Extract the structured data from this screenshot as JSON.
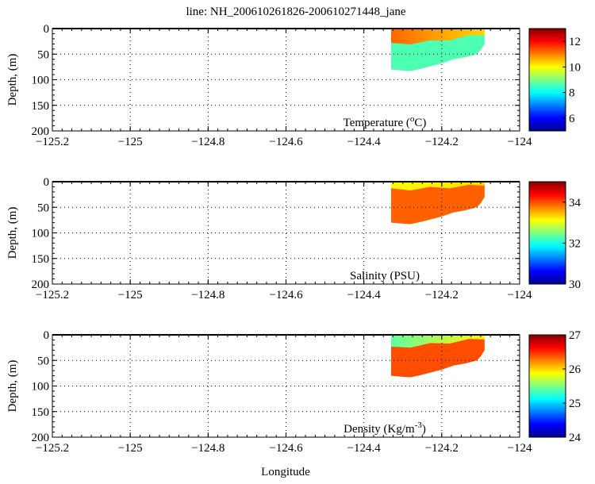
{
  "chart_data": {
    "type": "heatmap",
    "title": "line: NH_200610261826-200610271448_jane",
    "xlabel": "Longitude",
    "xlim": [
      -125.2,
      -124
    ],
    "x_ticks": [
      "-125.2",
      "-125",
      "-124.8",
      "-124.6",
      "-124.4",
      "-124.2",
      "-124"
    ],
    "x_tick_values": [
      -125.2,
      -125,
      -124.8,
      -124.6,
      -124.4,
      -124.2,
      -124
    ],
    "ylim": [
      0,
      200
    ],
    "y_ticks": [
      "0",
      "50",
      "100",
      "150",
      "200"
    ],
    "y_tick_values": [
      0,
      50,
      100,
      150,
      200
    ],
    "grid": true,
    "section_outline": {
      "lon": [
        -124.33,
        -124.33,
        -124.3,
        -124.28,
        -124.25,
        -124.2,
        -124.17,
        -124.14,
        -124.11,
        -124.1,
        -124.09,
        -124.09
      ],
      "bottom_depth": [
        0,
        80,
        82,
        83,
        78,
        68,
        60,
        56,
        50,
        42,
        30,
        0
      ]
    },
    "panels": [
      {
        "name": "temperature",
        "ylabel": "Depth, (m)",
        "label": "Temperature (",
        "label_sup": "o",
        "label_end": "C)",
        "clim": [
          5,
          13
        ],
        "cbar_ticks": [
          "6",
          "8",
          "10",
          "12"
        ],
        "cbar_tick_values": [
          6,
          8,
          10,
          12
        ],
        "layers": [
          {
            "depth_to": [
              30,
              28,
              25,
              20,
              15,
              10
            ],
            "value_west": 11.2,
            "value_east": 10.3
          },
          {
            "value": 8.6
          }
        ]
      },
      {
        "name": "salinity",
        "ylabel": "Depth, (m)",
        "label": "Salinity (PSU)",
        "label_sup": "",
        "label_end": "",
        "clim": [
          30,
          35
        ],
        "cbar_ticks": [
          "30",
          "32",
          "34"
        ],
        "cbar_tick_values": [
          30,
          32,
          34
        ],
        "layers": [
          {
            "depth_to": [
              15,
              14,
              12,
              10,
              8,
              5
            ],
            "value_west": 33.1,
            "value_east": 33.3
          },
          {
            "value": 33.9
          }
        ]
      },
      {
        "name": "density",
        "ylabel": "Depth, (m)",
        "label": "Density (Kg/m",
        "label_sup": "-3",
        "label_end": ")",
        "clim": [
          24,
          27
        ],
        "cbar_ticks": [
          "24",
          "25",
          "26",
          "27"
        ],
        "cbar_tick_values": [
          24,
          25,
          26,
          27
        ],
        "layers": [
          {
            "depth_to": [
              25,
              22,
              18,
              14,
              10,
              6
            ],
            "value_west": 25.4,
            "value_east": 25.9
          },
          {
            "value": 26.4
          }
        ]
      }
    ]
  }
}
